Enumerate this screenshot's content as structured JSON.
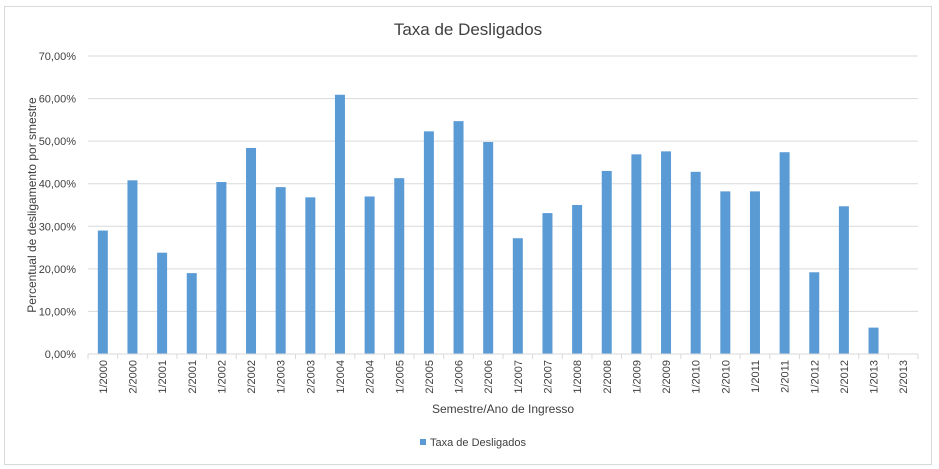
{
  "chart_data": {
    "type": "bar",
    "title": "Taxa de Desligados",
    "xlabel": "Semestre/Ano de Ingresso",
    "ylabel": "Percentual de desligamento por smestre",
    "ylim": [
      0,
      70
    ],
    "yticks": [
      "0,00%",
      "10,00%",
      "20,00%",
      "30,00%",
      "40,00%",
      "50,00%",
      "60,00%",
      "70,00%"
    ],
    "grid": true,
    "legend_position": "bottom",
    "categories": [
      "1/2000",
      "2/2000",
      "1/2001",
      "2/2001",
      "1/2002",
      "2/2002",
      "1/2003",
      "2/2003",
      "1/2004",
      "2/2004",
      "1/2005",
      "2/2005",
      "1/2006",
      "2/2006",
      "1/2007",
      "2/2007",
      "1/2008",
      "2/2008",
      "1/2009",
      "2/2009",
      "1/2010",
      "2/2010",
      "1/2011",
      "2/2011",
      "1/2012",
      "2/2012",
      "1/2013",
      "2/2013"
    ],
    "series": [
      {
        "name": "Taxa de Desligados",
        "color": "#5b9bd5",
        "values": [
          29.0,
          40.8,
          23.8,
          19.0,
          40.4,
          48.4,
          39.2,
          36.8,
          60.9,
          37.0,
          41.3,
          52.3,
          54.7,
          49.8,
          27.2,
          33.1,
          35.0,
          43.0,
          46.9,
          47.6,
          42.8,
          38.2,
          38.2,
          47.4,
          19.2,
          34.7,
          6.2,
          0
        ]
      }
    ]
  }
}
